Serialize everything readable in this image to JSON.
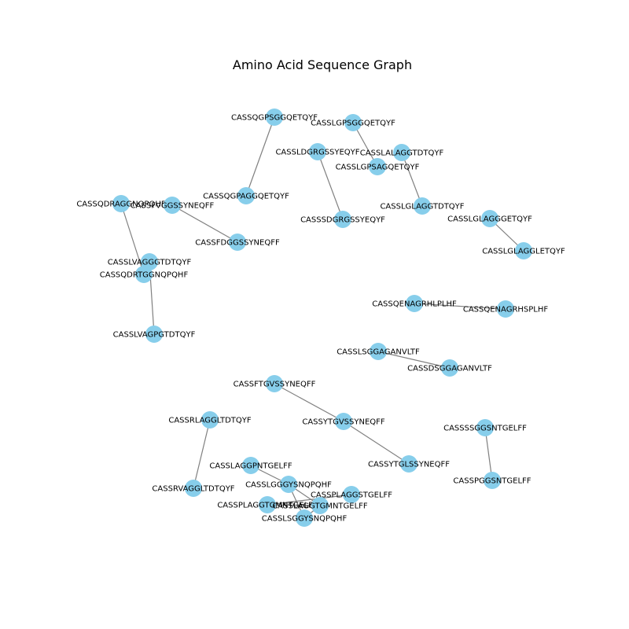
{
  "title": "Amino Acid Sequence Graph",
  "colors": {
    "node": "#87ceeb",
    "edge": "#808080",
    "label": "#000000",
    "background": "#ffffff"
  },
  "nodes": [
    {
      "id": "n1",
      "label": "CASSQGPSGGQETQYF"
    },
    {
      "id": "n2",
      "label": "CASSLGPSGGQETQYF"
    },
    {
      "id": "n3",
      "label": "CASSLDGRGSSYEQYF"
    },
    {
      "id": "n4",
      "label": "CASSLALAGGTDTQYF"
    },
    {
      "id": "n5",
      "label": "CASSLGPSAGQETQYF"
    },
    {
      "id": "n6",
      "label": "CASSQGPAGGQETQYF"
    },
    {
      "id": "n7",
      "label": "CASSQDRAGGNQPQHF"
    },
    {
      "id": "n8",
      "label": "CASSFVGGSSYNEQFF"
    },
    {
      "id": "n9",
      "label": "CASSSDGRGSSYEQYF"
    },
    {
      "id": "n10",
      "label": "CASSLGLAGGTDTQYF"
    },
    {
      "id": "n11",
      "label": "CASSLGLAGGGETQYF"
    },
    {
      "id": "n12",
      "label": "CASSFDGGSSYNEQFF"
    },
    {
      "id": "n13",
      "label": "CASSLGLAGGLETQYF"
    },
    {
      "id": "n14",
      "label": "CASSLVAGGGTDTQYF"
    },
    {
      "id": "n15",
      "label": "CASSQDRTGGNQPQHF"
    },
    {
      "id": "n16",
      "label": "CASSQENAGRHLPLHF"
    },
    {
      "id": "n17",
      "label": "CASSQENAGRHSPLHF"
    },
    {
      "id": "n18",
      "label": "CASSLVAGPGTDTQYF"
    },
    {
      "id": "n19",
      "label": "CASSLSGGAGANVLTF"
    },
    {
      "id": "n20",
      "label": "CASSDSGGAGANVLTF"
    },
    {
      "id": "n21",
      "label": "CASSFTGVSSYNEQFF"
    },
    {
      "id": "n22",
      "label": "CASSRLAGGLTDTQYF"
    },
    {
      "id": "n23",
      "label": "CASSYTGVSSYNEQFF"
    },
    {
      "id": "n24",
      "label": "CASSSSGGSNTGELFF"
    },
    {
      "id": "n25",
      "label": "CASSLAGGPNTGELFF"
    },
    {
      "id": "n26",
      "label": "CASSYTGLSSYNEQFF"
    },
    {
      "id": "n27",
      "label": "CASSRVAGGLTDTQYF"
    },
    {
      "id": "n28",
      "label": "CASSPGGSNTGELFF"
    },
    {
      "id": "n29",
      "label": "CASSLGGGYSNQPQHF"
    },
    {
      "id": "n30",
      "label": "CASSPLAGGSTGELFF"
    },
    {
      "id": "n31",
      "label": "CASSPLAGGTGMNTGELFF"
    },
    {
      "id": "n32",
      "label": "CASSLAGGTGMNTGELFF"
    },
    {
      "id": "n33",
      "label": "CASSLSGGYSNQPQHF"
    }
  ],
  "edges": [
    [
      "n1",
      "n6"
    ],
    [
      "n2",
      "n5"
    ],
    [
      "n4",
      "n10"
    ],
    [
      "n3",
      "n9"
    ],
    [
      "n11",
      "n13"
    ],
    [
      "n8",
      "n12"
    ],
    [
      "n7",
      "n15"
    ],
    [
      "n14",
      "n18"
    ],
    [
      "n16",
      "n17"
    ],
    [
      "n19",
      "n20"
    ],
    [
      "n21",
      "n23"
    ],
    [
      "n23",
      "n26"
    ],
    [
      "n22",
      "n27"
    ],
    [
      "n24",
      "n28"
    ],
    [
      "n25",
      "n29"
    ],
    [
      "n29",
      "n32"
    ],
    [
      "n29",
      "n33"
    ],
    [
      "n31",
      "n30"
    ],
    [
      "n31",
      "n32"
    ],
    [
      "n33",
      "n32"
    ]
  ]
}
